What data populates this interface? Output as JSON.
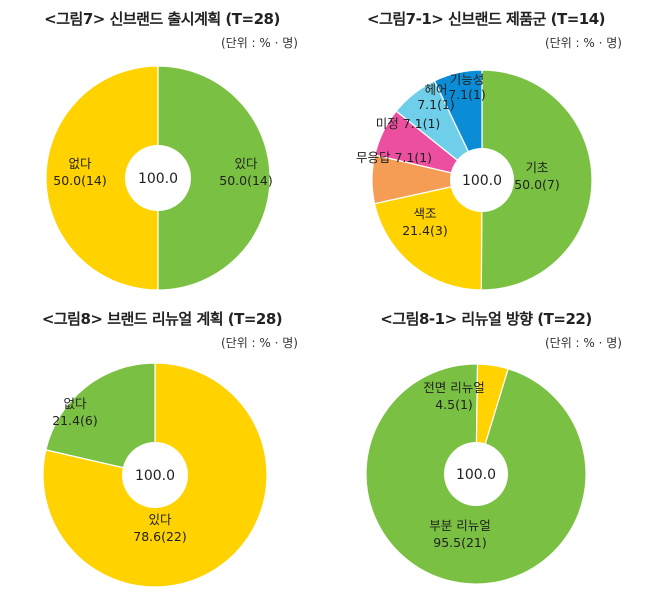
{
  "units": "(단위 : % · 명)",
  "colors": {
    "green": "#7AC143",
    "yellow": "#FFD200",
    "blue": "#0A8DD6",
    "cyan": "#6FCFEA",
    "pink": "#EC4FA0",
    "orange": "#F59D55"
  },
  "chart_data": [
    {
      "type": "pie",
      "title": "<그림7> 신브랜드 출시계획 (T=28)",
      "center_label": "100.0",
      "slices": [
        {
          "label": "있다",
          "value": 50.0,
          "count": 14,
          "display": "50.0(14)",
          "color": "#7AC143"
        },
        {
          "label": "없다",
          "value": 50.0,
          "count": 14,
          "display": "50.0(14)",
          "color": "#FFD200"
        }
      ]
    },
    {
      "type": "pie",
      "title": "<그림7-1> 신브랜드 제품군 (T=14)",
      "center_label": "100.0",
      "slices": [
        {
          "label": "기초",
          "value": 50.0,
          "count": 7,
          "display": "50.0(7)",
          "color": "#7AC143"
        },
        {
          "label": "색조",
          "value": 21.4,
          "count": 3,
          "display": "21.4(3)",
          "color": "#FFD200"
        },
        {
          "label": "무응답",
          "value": 7.1,
          "count": 1,
          "display": "7.1(1)",
          "color": "#F59D55"
        },
        {
          "label": "미정",
          "value": 7.1,
          "count": 1,
          "display": "7.1(1)",
          "color": "#EC4FA0"
        },
        {
          "label": "헤어",
          "value": 7.1,
          "count": 1,
          "display": "7.1(1)",
          "color": "#6FCFEA"
        },
        {
          "label": "기능성",
          "value": 7.1,
          "count": 1,
          "display": "7.1(1)",
          "color": "#0A8DD6"
        }
      ]
    },
    {
      "type": "pie",
      "title": "<그림8> 브랜드 리뉴얼 계획 (T=28)",
      "center_label": "100.0",
      "slices": [
        {
          "label": "있다",
          "value": 78.6,
          "count": 22,
          "display": "78.6(22)",
          "color": "#FFD200"
        },
        {
          "label": "없다",
          "value": 21.4,
          "count": 6,
          "display": "21.4(6)",
          "color": "#7AC143"
        }
      ]
    },
    {
      "type": "pie",
      "title": "<그림8-1> 리뉴얼 방향 (T=22)",
      "center_label": "100.0",
      "slices": [
        {
          "label": "부분 리뉴얼",
          "value": 95.5,
          "count": 21,
          "display": "95.5(21)",
          "color": "#7AC143"
        },
        {
          "label": "전면 리뉴얼",
          "value": 4.5,
          "count": 1,
          "display": "4.5(1)",
          "color": "#FFD200"
        }
      ]
    }
  ]
}
